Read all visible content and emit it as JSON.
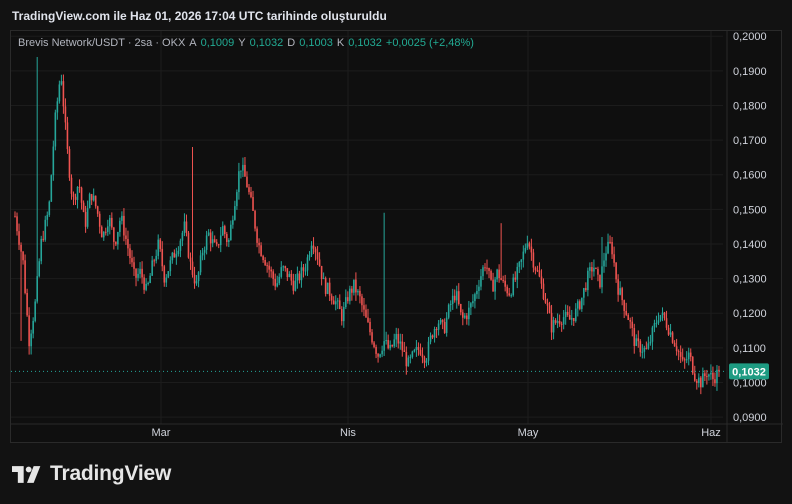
{
  "header": {
    "caption": "TradingView.com ile Haz 01, 2026 17:04 UTC tarihinde oluşturuldu"
  },
  "legend": {
    "symbol": "Brevis Network/USDT · 2sa · OKX",
    "open_label": "A",
    "open_value": "0,1009",
    "high_label": "Y",
    "high_value": "0,1032",
    "low_label": "D",
    "low_value": "0,1003",
    "close_label": "K",
    "close_value": "0,1032",
    "change": "+0,0025 (+2,48%)"
  },
  "price_axis": {
    "labels": [
      "0,2000",
      "0,1900",
      "0,1800",
      "0,1700",
      "0,1600",
      "0,1500",
      "0,1400",
      "0,1300",
      "0,1200",
      "0,1100",
      "0,1000",
      "0,0900"
    ],
    "current_price_label": "0,1032"
  },
  "time_axis": {
    "labels": [
      "Mar",
      "Nis",
      "May",
      "Haz"
    ]
  },
  "colors": {
    "up": "#26a69a",
    "down": "#ef5350",
    "price_tag": "#1e9b82",
    "background": "#0f0f0f",
    "grid": "#1c1c1c"
  },
  "brand": {
    "name": "TradingView",
    "logo_icon": "tradingview-logo-icon"
  },
  "chart_data": {
    "type": "candlestick",
    "symbol": "Brevis Network/USDT",
    "interval": "2sa",
    "exchange": "OKX",
    "ylim": [
      0.088,
      0.2015
    ],
    "y_ticks": [
      0.09,
      0.1,
      0.11,
      0.12,
      0.13,
      0.14,
      0.15,
      0.16,
      0.17,
      0.18,
      0.19,
      0.2
    ],
    "x_ticks": [
      "Mar",
      "Nis",
      "May",
      "Haz"
    ],
    "last_price": 0.1032,
    "grid": true,
    "price_path": [
      [
        0,
        0.148
      ],
      [
        4,
        0.135
      ],
      [
        7,
        0.112
      ],
      [
        10,
        0.122
      ],
      [
        13,
        0.14
      ],
      [
        17,
        0.15
      ],
      [
        20,
        0.175
      ],
      [
        23,
        0.19
      ],
      [
        26,
        0.168
      ],
      [
        29,
        0.152
      ],
      [
        32,
        0.158
      ],
      [
        35,
        0.145
      ],
      [
        38,
        0.155
      ],
      [
        41,
        0.15
      ],
      [
        44,
        0.142
      ],
      [
        47,
        0.148
      ],
      [
        50,
        0.14
      ],
      [
        53,
        0.148
      ],
      [
        57,
        0.138
      ],
      [
        60,
        0.13
      ],
      [
        63,
        0.132
      ],
      [
        66,
        0.126
      ],
      [
        69,
        0.134
      ],
      [
        72,
        0.14
      ],
      [
        75,
        0.13
      ],
      [
        79,
        0.136
      ],
      [
        82,
        0.14
      ],
      [
        85,
        0.145
      ],
      [
        88,
        0.134
      ],
      [
        91,
        0.128
      ],
      [
        94,
        0.138
      ],
      [
        97,
        0.143
      ],
      [
        101,
        0.138
      ],
      [
        104,
        0.145
      ],
      [
        107,
        0.14
      ],
      [
        110,
        0.152
      ],
      [
        113,
        0.163
      ],
      [
        116,
        0.158
      ],
      [
        119,
        0.15
      ],
      [
        122,
        0.14
      ],
      [
        125,
        0.136
      ],
      [
        128,
        0.132
      ],
      [
        131,
        0.128
      ],
      [
        134,
        0.133
      ],
      [
        137,
        0.131
      ],
      [
        140,
        0.128
      ],
      [
        143,
        0.131
      ],
      [
        146,
        0.134
      ],
      [
        149,
        0.142
      ],
      [
        152,
        0.136
      ],
      [
        155,
        0.128
      ],
      [
        158,
        0.126
      ],
      [
        161,
        0.123
      ],
      [
        164,
        0.119
      ],
      [
        167,
        0.125
      ],
      [
        170,
        0.128
      ],
      [
        173,
        0.124
      ],
      [
        176,
        0.118
      ],
      [
        179,
        0.113
      ],
      [
        182,
        0.108
      ],
      [
        185,
        0.112
      ],
      [
        188,
        0.109
      ],
      [
        191,
        0.113
      ],
      [
        194,
        0.11
      ],
      [
        197,
        0.105
      ],
      [
        200,
        0.108
      ],
      [
        203,
        0.11
      ],
      [
        206,
        0.107
      ],
      [
        209,
        0.114
      ],
      [
        212,
        0.118
      ],
      [
        215,
        0.115
      ],
      [
        218,
        0.122
      ],
      [
        221,
        0.126
      ],
      [
        224,
        0.118
      ],
      [
        227,
        0.12
      ],
      [
        230,
        0.124
      ],
      [
        233,
        0.13
      ],
      [
        236,
        0.135
      ],
      [
        239,
        0.127
      ],
      [
        242,
        0.132
      ],
      [
        245,
        0.128
      ],
      [
        248,
        0.126
      ],
      [
        251,
        0.13
      ],
      [
        254,
        0.135
      ],
      [
        257,
        0.142
      ],
      [
        260,
        0.135
      ],
      [
        263,
        0.13
      ],
      [
        266,
        0.124
      ],
      [
        269,
        0.116
      ],
      [
        272,
        0.118
      ],
      [
        275,
        0.119
      ],
      [
        278,
        0.118
      ],
      [
        281,
        0.12
      ],
      [
        284,
        0.124
      ],
      [
        287,
        0.13
      ],
      [
        290,
        0.134
      ],
      [
        293,
        0.128
      ],
      [
        296,
        0.138
      ],
      [
        299,
        0.14
      ],
      [
        302,
        0.128
      ],
      [
        305,
        0.123
      ],
      [
        308,
        0.118
      ],
      [
        311,
        0.111
      ],
      [
        314,
        0.11
      ],
      [
        317,
        0.109
      ],
      [
        320,
        0.115
      ],
      [
        323,
        0.12
      ],
      [
        326,
        0.118
      ],
      [
        329,
        0.114
      ],
      [
        332,
        0.11
      ],
      [
        335,
        0.105
      ],
      [
        338,
        0.108
      ],
      [
        341,
        0.102
      ],
      [
        344,
        0.1
      ],
      [
        347,
        0.103
      ],
      [
        350,
        0.101
      ],
      [
        353,
        0.1032
      ]
    ]
  }
}
